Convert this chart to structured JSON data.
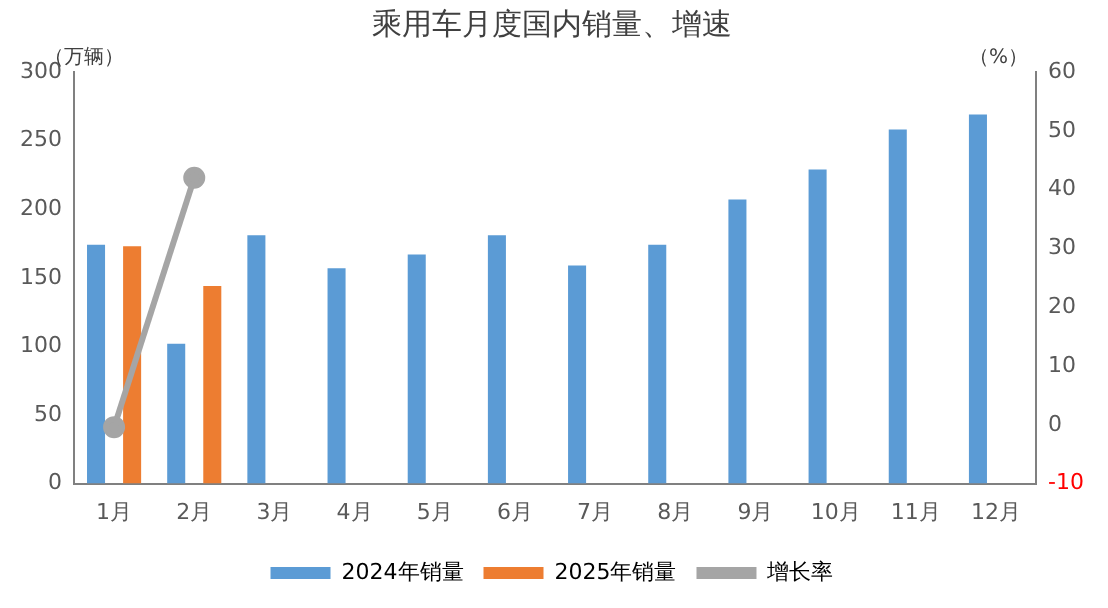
{
  "chart_data": {
    "type": "bar",
    "title": "乘用车月度国内销量、增速",
    "ylabel": "（万辆）",
    "y2label": "（%）",
    "categories": [
      "1月",
      "2月",
      "3月",
      "4月",
      "5月",
      "6月",
      "7月",
      "8月",
      "9月",
      "10月",
      "11月",
      "12月"
    ],
    "series": [
      {
        "name": "2024年销量",
        "color": "#5b9bd5",
        "values": [
          174,
          102,
          181,
          157,
          167,
          181,
          159,
          174,
          207,
          229,
          258,
          269
        ]
      },
      {
        "name": "2025年销量",
        "color": "#ed7d31",
        "values": [
          173,
          144,
          null,
          null,
          null,
          null,
          null,
          null,
          null,
          null,
          null,
          null
        ]
      },
      {
        "name": "增长率",
        "type": "line",
        "axis": "y2",
        "color": "#a5a5a5",
        "values": [
          -0.4,
          42,
          null,
          null,
          null,
          null,
          null,
          null,
          null,
          null,
          null,
          null
        ]
      }
    ],
    "ylim": [
      0,
      300
    ],
    "yticks": [
      0,
      50,
      100,
      150,
      200,
      250,
      300
    ],
    "y2lim": [
      -10,
      60
    ],
    "y2ticks": [
      -10,
      0,
      10,
      20,
      30,
      40,
      50,
      60
    ],
    "grid": false,
    "legend": "bottom",
    "marker": "circle"
  }
}
